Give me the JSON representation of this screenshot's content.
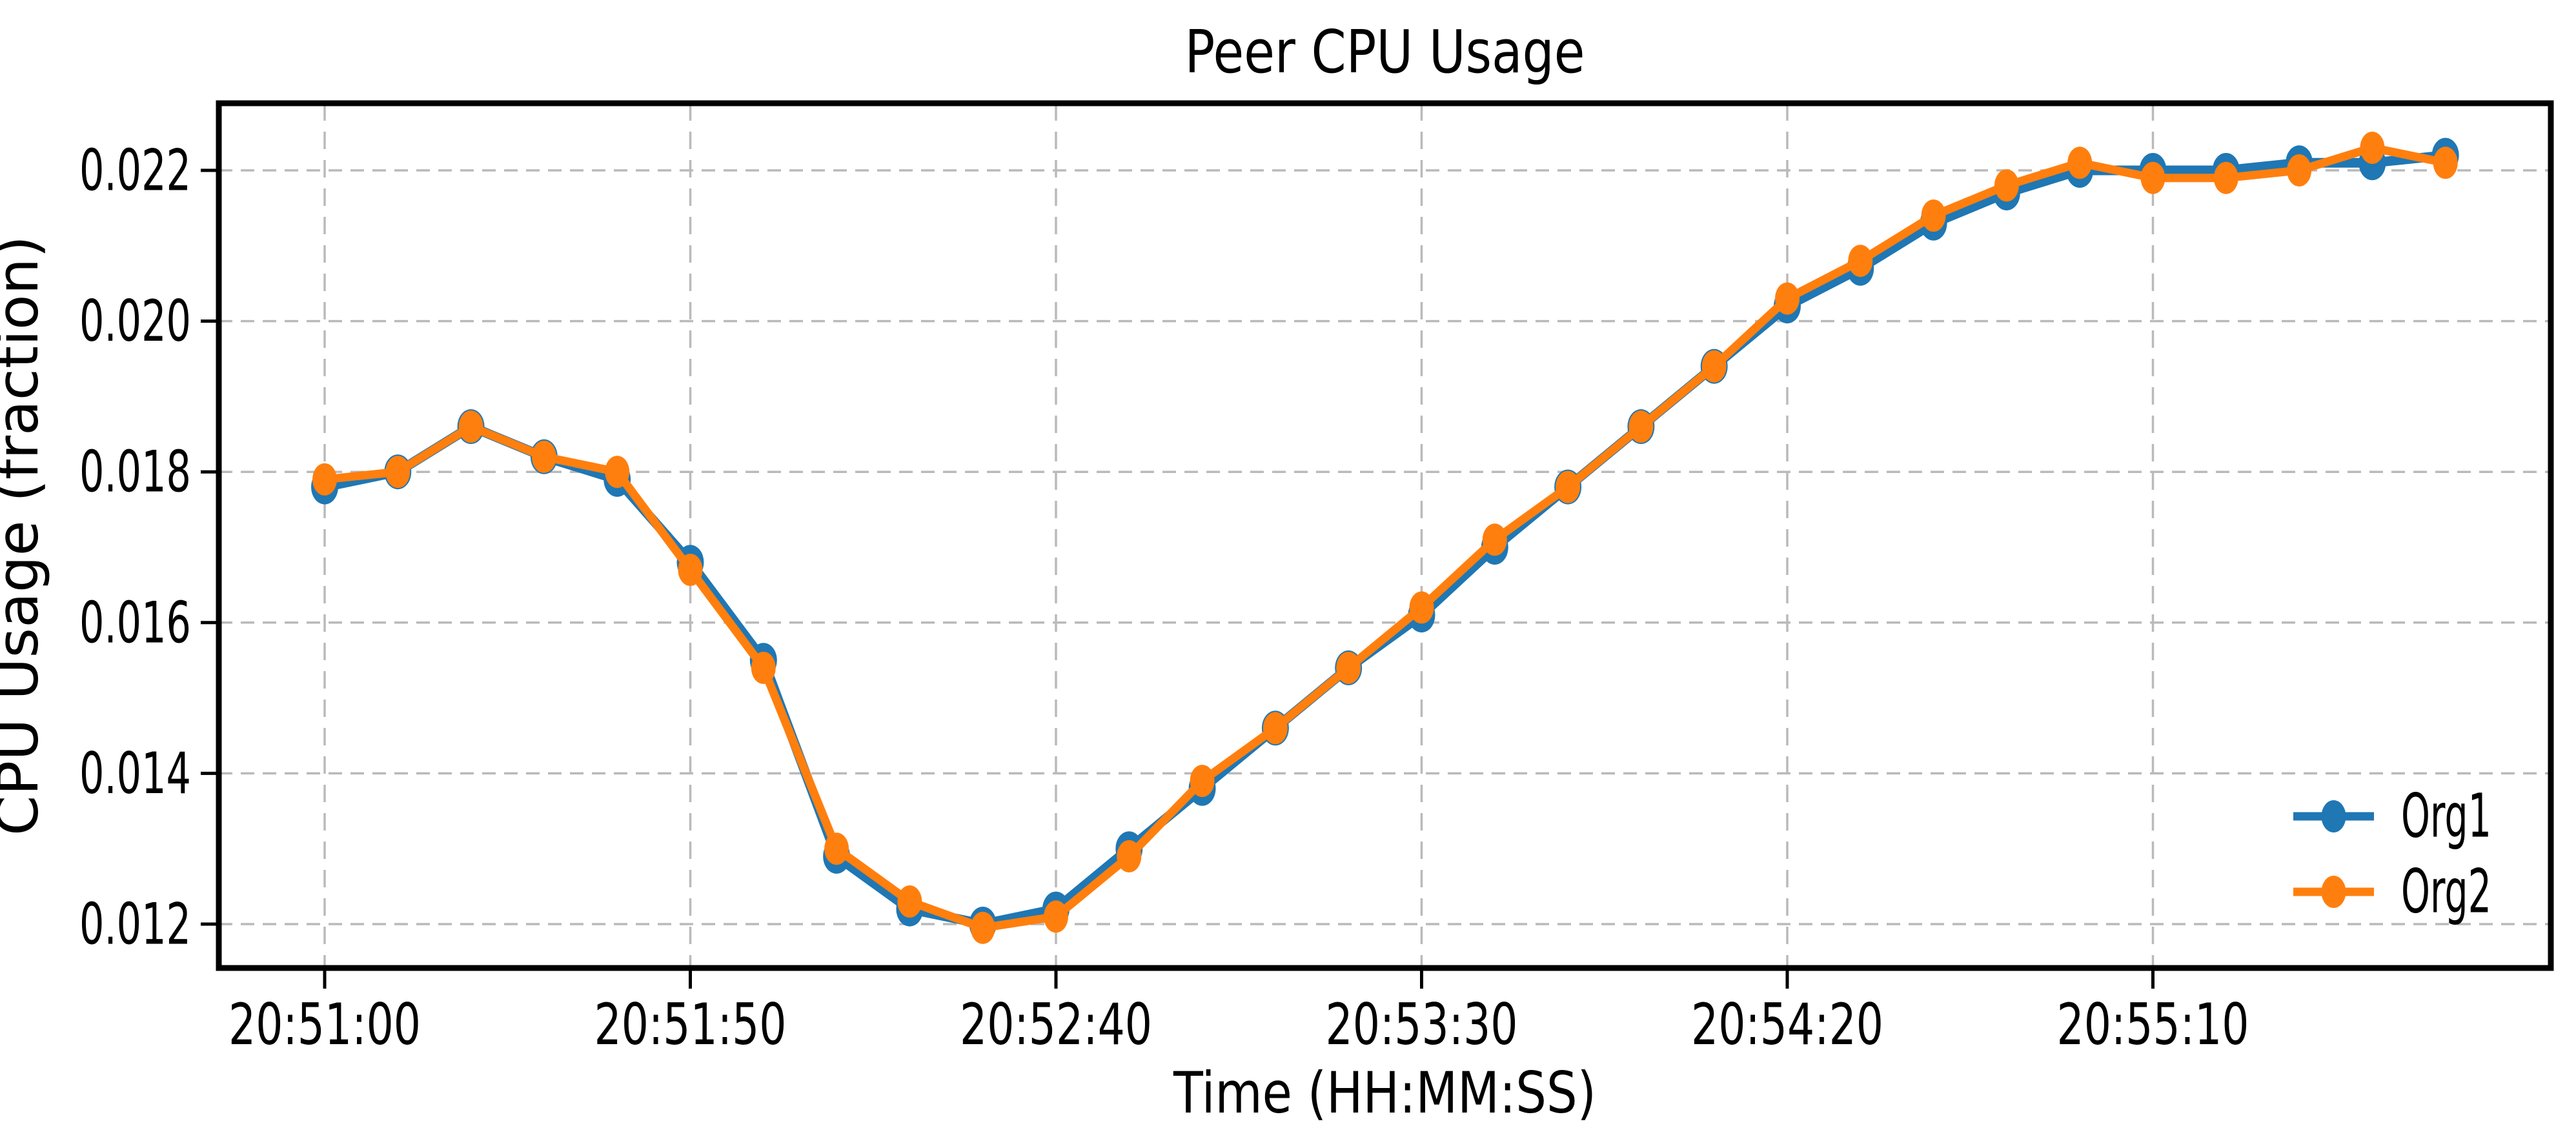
{
  "figure": {
    "background": "#ffffff"
  },
  "chart_data": {
    "type": "line",
    "title": "Peer CPU Usage",
    "xlabel": "Time (HH:MM:SS)",
    "ylabel": "CPU Usage (fraction)",
    "start_time": "20:51:00",
    "sample_interval_seconds": 10,
    "x_offsets_seconds": [
      0,
      10,
      20,
      30,
      40,
      50,
      60,
      70,
      80,
      90,
      100,
      110,
      120,
      130,
      140,
      150,
      160,
      170,
      180,
      190,
      200,
      210,
      220,
      230,
      240,
      250,
      260,
      270,
      280,
      290
    ],
    "x_times": [
      "20:51:00",
      "20:51:10",
      "20:51:20",
      "20:51:30",
      "20:51:40",
      "20:51:50",
      "20:52:00",
      "20:52:10",
      "20:52:20",
      "20:52:30",
      "20:52:40",
      "20:52:50",
      "20:53:00",
      "20:53:10",
      "20:53:20",
      "20:53:30",
      "20:53:40",
      "20:53:50",
      "20:54:00",
      "20:54:10",
      "20:54:20",
      "20:54:30",
      "20:54:40",
      "20:54:50",
      "20:55:00",
      "20:55:10",
      "20:55:20",
      "20:55:30",
      "20:55:40",
      "20:55:50"
    ],
    "series": [
      {
        "name": "Org1",
        "color": "#1f77b4",
        "values": [
          0.0178,
          0.018,
          0.0186,
          0.0182,
          0.0179,
          0.0168,
          0.0155,
          0.0129,
          0.0122,
          0.012,
          0.0122,
          0.013,
          0.0138,
          0.0146,
          0.0154,
          0.0161,
          0.017,
          0.0178,
          0.0186,
          0.0194,
          0.0202,
          0.0207,
          0.0213,
          0.0217,
          0.022,
          0.022,
          0.022,
          0.0221,
          0.0221,
          0.0222
        ]
      },
      {
        "name": "Org2",
        "color": "#ff7f0e",
        "values": [
          0.0179,
          0.018,
          0.0186,
          0.0182,
          0.018,
          0.0167,
          0.0154,
          0.013,
          0.0123,
          0.01195,
          0.0121,
          0.0129,
          0.0139,
          0.0146,
          0.0154,
          0.0162,
          0.0171,
          0.0178,
          0.0186,
          0.0194,
          0.0203,
          0.0208,
          0.0214,
          0.0218,
          0.0221,
          0.0219,
          0.0219,
          0.022,
          0.0223,
          0.0221
        ]
      }
    ],
    "x_ticks": [
      {
        "offset_seconds": 0,
        "label": "20:51:00"
      },
      {
        "offset_seconds": 50,
        "label": "20:51:50"
      },
      {
        "offset_seconds": 100,
        "label": "20:52:40"
      },
      {
        "offset_seconds": 150,
        "label": "20:53:30"
      },
      {
        "offset_seconds": 200,
        "label": "20:54:20"
      },
      {
        "offset_seconds": 250,
        "label": "20:55:10"
      }
    ],
    "y_ticks": [
      0.012,
      0.014,
      0.016,
      0.018,
      0.02,
      0.022
    ],
    "y_tick_labels": [
      "0.012",
      "0.014",
      "0.016",
      "0.018",
      "0.020",
      "0.022"
    ],
    "ylim": [
      0.01142,
      0.02291
    ],
    "xlim_seconds": [
      -14.5,
      304.4
    ],
    "grid": true,
    "grid_color": "#bababa",
    "axis_color": "#000000",
    "legend": {
      "position": "lower right",
      "entries": [
        "Org1",
        "Org2"
      ]
    }
  }
}
